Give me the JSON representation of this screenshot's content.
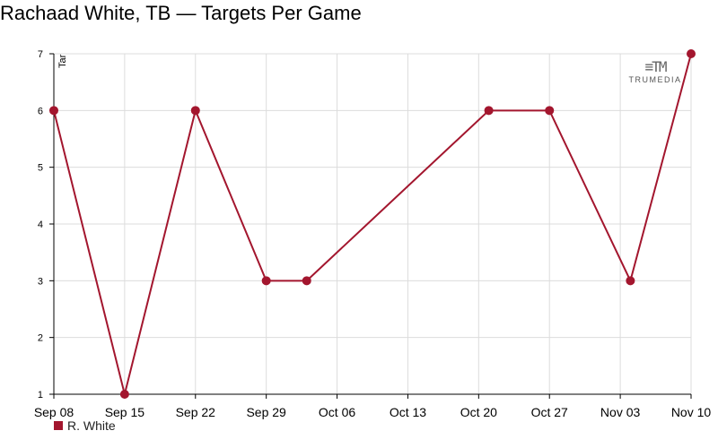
{
  "chart_data": {
    "type": "line",
    "title": "Rachaad White, TB — Targets Per Game",
    "ylabel": "Tar",
    "ylim": [
      1,
      7
    ],
    "yticks": [
      1,
      2,
      3,
      4,
      5,
      6,
      7
    ],
    "xtick_labels": [
      "Sep 08",
      "Sep 15",
      "Sep 22",
      "Sep 29",
      "Oct 06",
      "Oct 13",
      "Oct 20",
      "Oct 27",
      "Nov 03",
      "Nov 10"
    ],
    "xlim": [
      "2024-09-08",
      "2024-11-10"
    ],
    "grid": true,
    "legend_position": "bottom-left",
    "series": [
      {
        "name": "R. White",
        "color": "#a3162e",
        "points": [
          {
            "x": "2024-09-08",
            "y": 6
          },
          {
            "x": "2024-09-15",
            "y": 1
          },
          {
            "x": "2024-09-22",
            "y": 6
          },
          {
            "x": "2024-09-29",
            "y": 3
          },
          {
            "x": "2024-10-03",
            "y": 3
          },
          {
            "x": "2024-10-21",
            "y": 6
          },
          {
            "x": "2024-10-27",
            "y": 6
          },
          {
            "x": "2024-11-04",
            "y": 3
          },
          {
            "x": "2024-11-10",
            "y": 7
          }
        ]
      }
    ]
  },
  "logo": {
    "mark": "≡TM",
    "text": "TRUMEDIA"
  },
  "legend": {
    "label": "R. White"
  }
}
